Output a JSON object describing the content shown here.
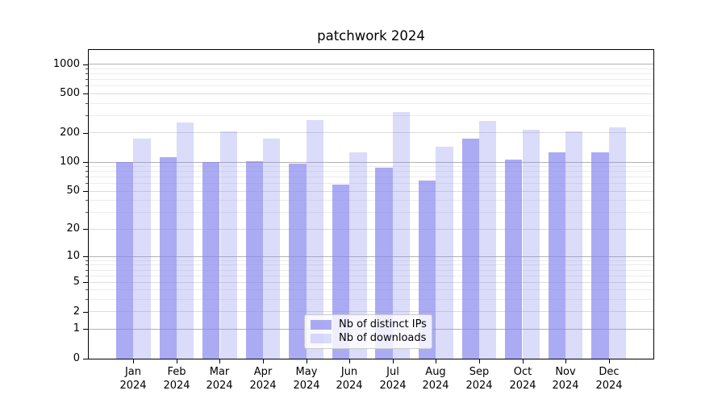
{
  "chart_data": {
    "type": "bar",
    "title": "patchwork 2024",
    "categories": [
      "Jan\n2024",
      "Feb\n2024",
      "Mar\n2024",
      "Apr\n2024",
      "May\n2024",
      "Jun\n2024",
      "Jul\n2024",
      "Aug\n2024",
      "Sep\n2024",
      "Oct\n2024",
      "Nov\n2024",
      "Dec\n2024"
    ],
    "series": [
      {
        "name": "Nb of distinct IPs",
        "color": "rgba(136,136,238,0.7)",
        "values": [
          100,
          112,
          100,
          103,
          97,
          58,
          87,
          65,
          175,
          106,
          125,
          125
        ]
      },
      {
        "name": "Nb of downloads",
        "color": "rgba(136,136,238,0.3)",
        "values": [
          175,
          255,
          205,
          175,
          268,
          125,
          325,
          145,
          265,
          213,
          207,
          226
        ]
      }
    ],
    "yscale": "log1p",
    "ylim": [
      0,
      1400
    ],
    "y_major_ticks": [
      0,
      1,
      2,
      5,
      10,
      20,
      50,
      100,
      200,
      500,
      1000
    ],
    "y_tick_labels": [
      "0",
      "1",
      "2",
      "5",
      "10",
      "20",
      "50",
      "100",
      "200",
      "500",
      "1000"
    ],
    "y_minor_ticks": [
      3,
      4,
      6,
      7,
      8,
      9,
      30,
      40,
      60,
      70,
      80,
      90,
      300,
      400,
      600,
      700,
      800,
      900
    ],
    "grid": true,
    "legend_position": "lower center"
  }
}
